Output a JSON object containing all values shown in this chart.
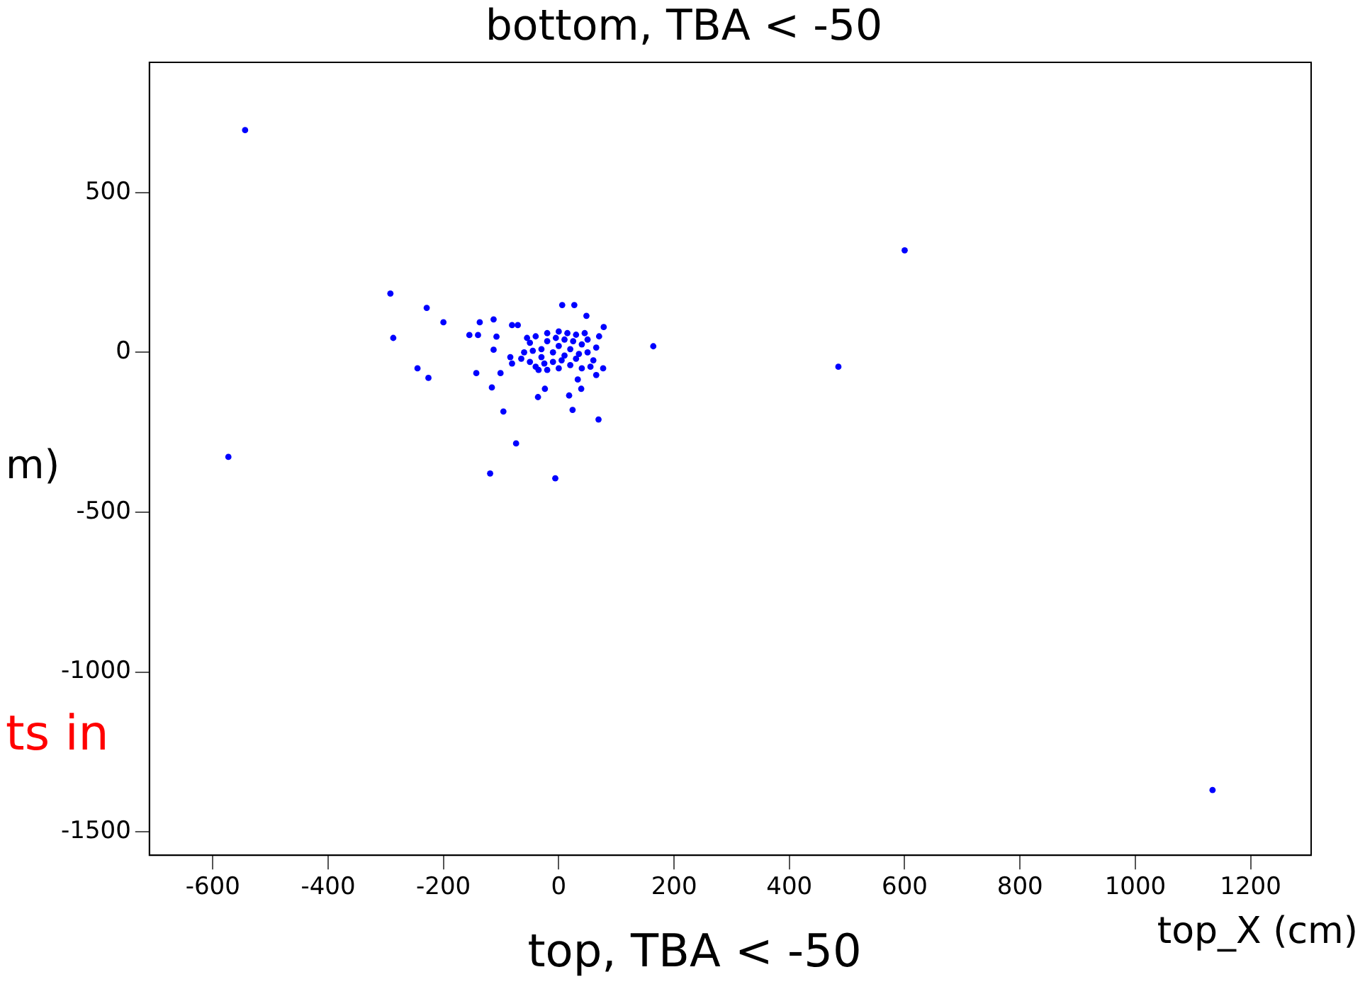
{
  "chart_data": {
    "type": "scatter",
    "title": "bottom, TBA < -50",
    "xlabel": "top_X (cm)",
    "ylabel": "m)",
    "annotations": [
      "top, TBA < -50",
      "ts in"
    ],
    "x": [
      -544,
      -573,
      600,
      485,
      1134,
      -292,
      -229,
      -200,
      -287,
      -245,
      -226,
      -155,
      -140,
      -137,
      -113,
      -108,
      -113,
      -143,
      -101,
      -116,
      -96,
      -74,
      -119,
      -6,
      -81,
      -71,
      6,
      27,
      48,
      78,
      164,
      -24,
      -36,
      18,
      39,
      24,
      69,
      33,
      65,
      77,
      -84,
      -81,
      -60,
      -50,
      -50,
      -40,
      -40,
      -30,
      -30,
      -20,
      -20,
      -20,
      -10,
      -10,
      0,
      0,
      0,
      10,
      10,
      20,
      20,
      30,
      30,
      40,
      40,
      50,
      50,
      60,
      65,
      70,
      -65,
      -45,
      5,
      15,
      -5,
      35,
      55,
      -25,
      25,
      -55,
      45,
      -35
    ],
    "series": [
      {
        "color": "#0000ff",
        "values": [
          695,
          -327,
          319,
          -45,
          -1369,
          184,
          139,
          94,
          45,
          -50,
          -80,
          54,
          54,
          94,
          103,
          49,
          8,
          -65,
          -65,
          -110,
          -185,
          -285,
          -379,
          -394,
          85,
          85,
          148,
          148,
          114,
          79,
          19,
          -114,
          -140,
          -135,
          -114,
          -180,
          -210,
          -85,
          -71,
          -50,
          -15,
          -35,
          0,
          30,
          -30,
          50,
          -45,
          10,
          -15,
          60,
          -55,
          35,
          0,
          -30,
          20,
          -50,
          65,
          -10,
          40,
          -40,
          10,
          55,
          -20,
          25,
          -50,
          0,
          40,
          -25,
          15,
          50,
          -20,
          5,
          -25,
          60,
          45,
          -5,
          -45,
          -35,
          35,
          45,
          60,
          -55
        ]
      }
    ],
    "xlim": [
      -710,
      1305
    ],
    "ylim": [
      -1573,
      907
    ],
    "xticks": [
      -600,
      -400,
      -200,
      0,
      200,
      400,
      600,
      800,
      1000,
      1200
    ],
    "yticks": [
      -1500,
      -1000,
      -500,
      0,
      500
    ],
    "grid": false,
    "legend": false,
    "marker": "circle"
  }
}
